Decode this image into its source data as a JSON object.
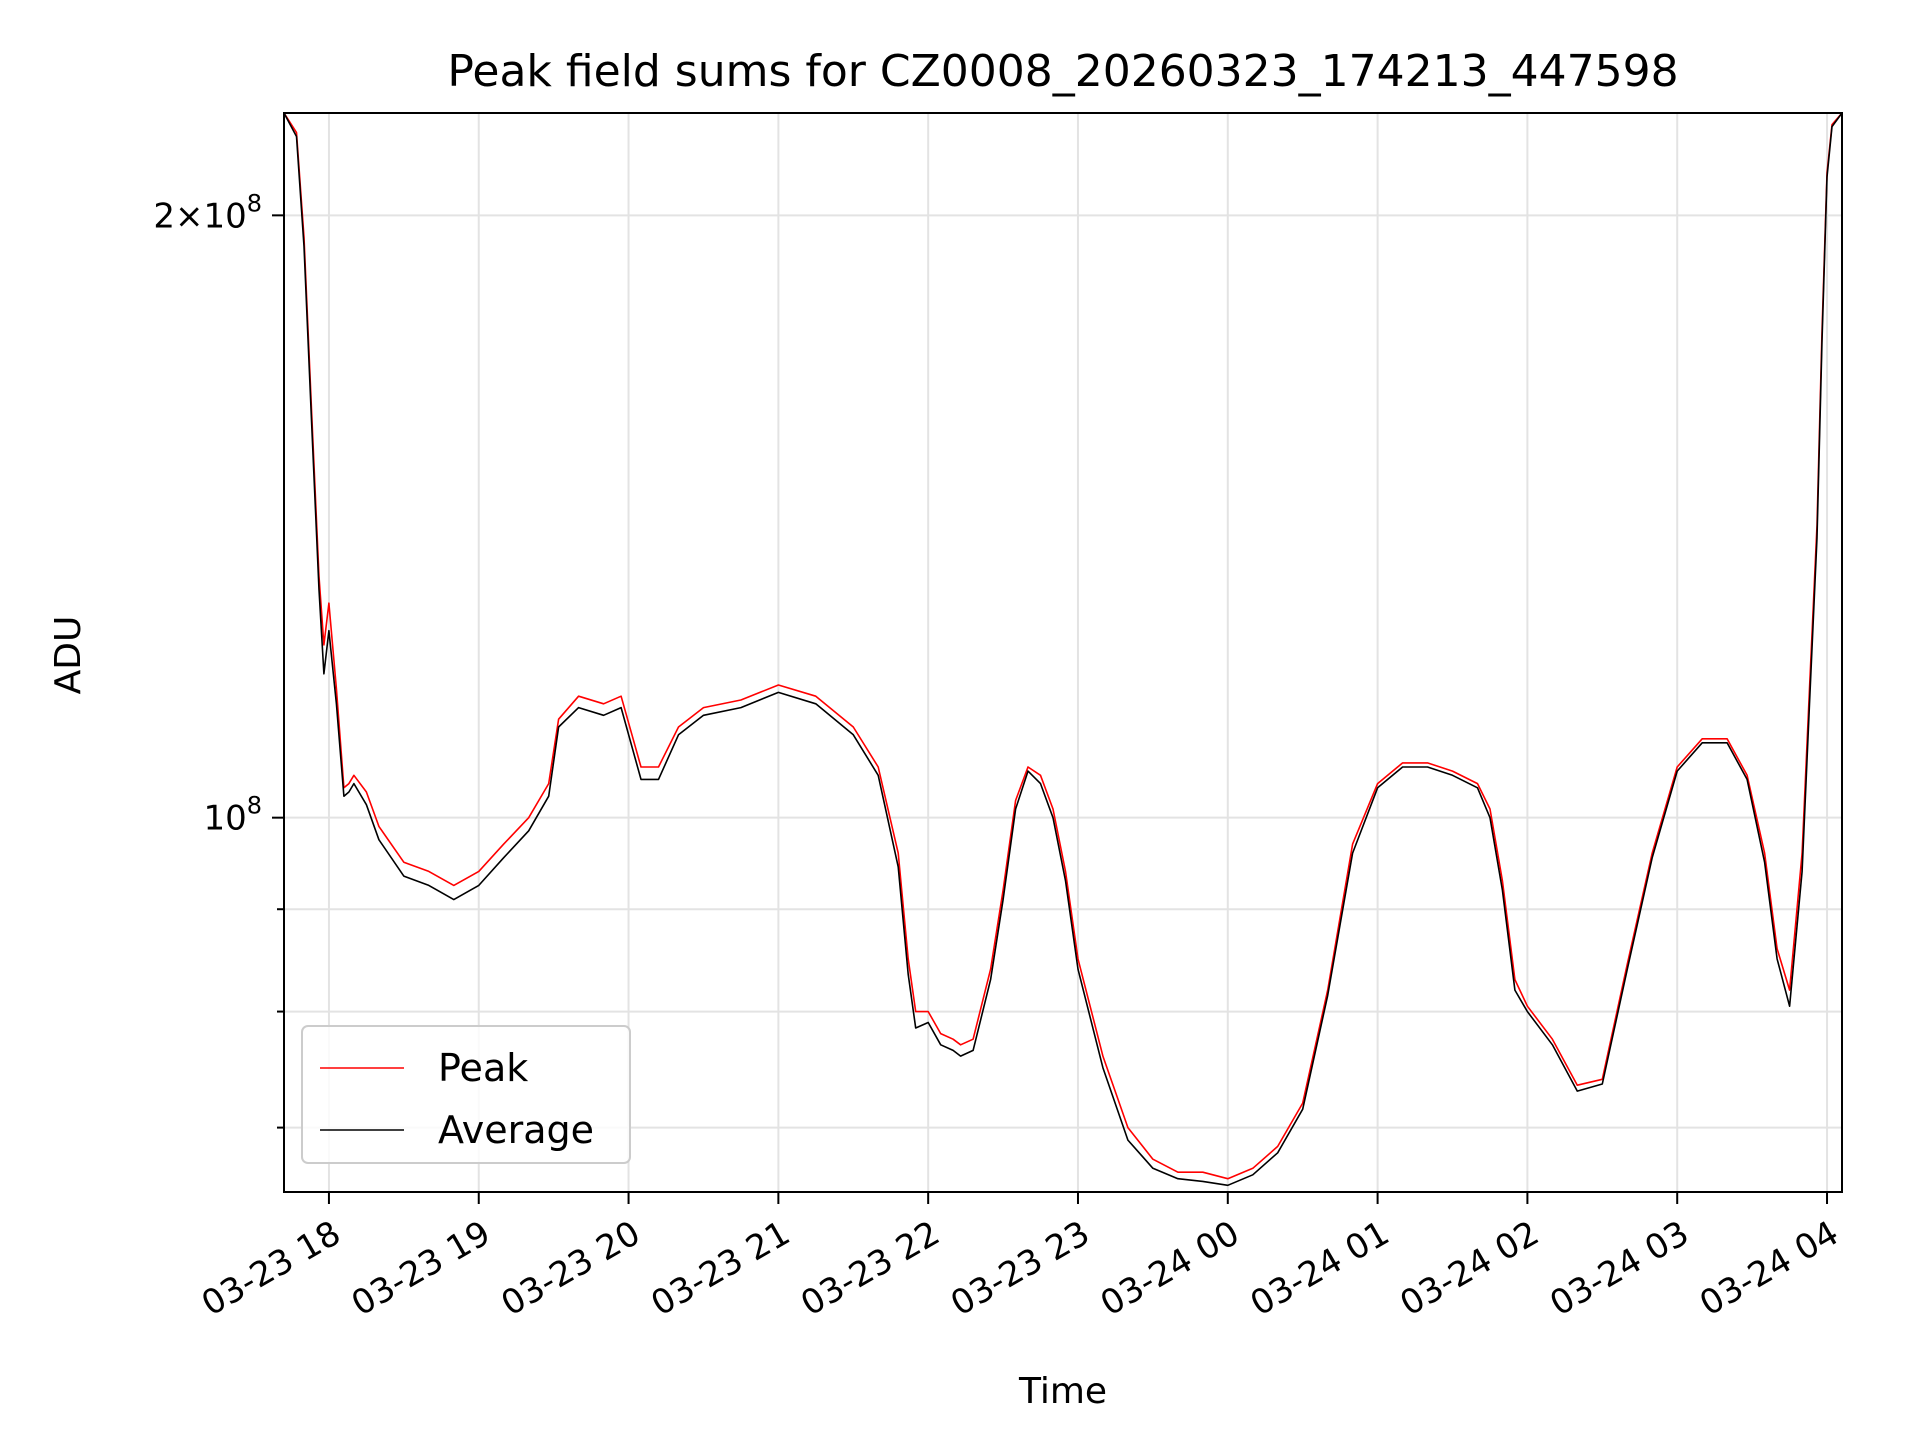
{
  "chart_data": {
    "type": "line",
    "title": "Peak field sums for CZ0008_20260323_174213_447598",
    "xlabel": "Time",
    "ylabel": "ADU",
    "yscale": "log",
    "grid": true,
    "legend_placement": "lower-left",
    "xlim": [
      "2026-03-23 17:42",
      "2026-03-24 04:06"
    ],
    "ylim": [
      65000000,
      225000000
    ],
    "x_ticks": [
      {
        "at": "2026-03-23 18:00",
        "label": "03-23 18"
      },
      {
        "at": "2026-03-23 19:00",
        "label": "03-23 19"
      },
      {
        "at": "2026-03-23 20:00",
        "label": "03-23 20"
      },
      {
        "at": "2026-03-23 21:00",
        "label": "03-23 21"
      },
      {
        "at": "2026-03-23 22:00",
        "label": "03-23 22"
      },
      {
        "at": "2026-03-23 23:00",
        "label": "03-23 23"
      },
      {
        "at": "2026-03-24 00:00",
        "label": "03-24 00"
      },
      {
        "at": "2026-03-24 01:00",
        "label": "03-24 01"
      },
      {
        "at": "2026-03-24 02:00",
        "label": "03-24 02"
      },
      {
        "at": "2026-03-24 03:00",
        "label": "03-24 03"
      },
      {
        "at": "2026-03-24 04:00",
        "label": "03-24 04"
      }
    ],
    "y_major_ticks": [
      {
        "value": 100000000,
        "base": "10",
        "exp": "8"
      },
      {
        "value": 200000000,
        "mant": "2",
        "base": "10",
        "exp": "8"
      }
    ],
    "y_minor_ticks": [
      70000000,
      80000000,
      90000000
    ],
    "series": [
      {
        "name": "Peak",
        "color": "#ff0000",
        "x": [
          "2026-03-23 17:42",
          "2026-03-23 17:47",
          "2026-03-23 17:50",
          "2026-03-23 17:53",
          "2026-03-23 17:56",
          "2026-03-23 17:58",
          "2026-03-23 18:00",
          "2026-03-23 18:03",
          "2026-03-23 18:06",
          "2026-03-23 18:08",
          "2026-03-23 18:10",
          "2026-03-23 18:15",
          "2026-03-23 18:20",
          "2026-03-23 18:30",
          "2026-03-23 18:40",
          "2026-03-23 18:50",
          "2026-03-23 19:00",
          "2026-03-23 19:10",
          "2026-03-23 19:20",
          "2026-03-23 19:28",
          "2026-03-23 19:32",
          "2026-03-23 19:40",
          "2026-03-23 19:50",
          "2026-03-23 19:57",
          "2026-03-23 20:05",
          "2026-03-23 20:12",
          "2026-03-23 20:20",
          "2026-03-23 20:30",
          "2026-03-23 20:45",
          "2026-03-23 21:00",
          "2026-03-23 21:15",
          "2026-03-23 21:30",
          "2026-03-23 21:40",
          "2026-03-23 21:48",
          "2026-03-23 21:52",
          "2026-03-23 21:55",
          "2026-03-23 22:00",
          "2026-03-23 22:05",
          "2026-03-23 22:10",
          "2026-03-23 22:13",
          "2026-03-23 22:18",
          "2026-03-23 22:25",
          "2026-03-23 22:30",
          "2026-03-23 22:35",
          "2026-03-23 22:40",
          "2026-03-23 22:45",
          "2026-03-23 22:50",
          "2026-03-23 22:55",
          "2026-03-23 23:00",
          "2026-03-23 23:10",
          "2026-03-23 23:20",
          "2026-03-23 23:30",
          "2026-03-23 23:40",
          "2026-03-23 23:50",
          "2026-03-24 00:00",
          "2026-03-24 00:10",
          "2026-03-24 00:20",
          "2026-03-24 00:30",
          "2026-03-24 00:40",
          "2026-03-24 00:50",
          "2026-03-24 01:00",
          "2026-03-24 01:10",
          "2026-03-24 01:20",
          "2026-03-24 01:30",
          "2026-03-24 01:40",
          "2026-03-24 01:45",
          "2026-03-24 01:50",
          "2026-03-24 01:55",
          "2026-03-24 02:00",
          "2026-03-24 02:10",
          "2026-03-24 02:20",
          "2026-03-24 02:30",
          "2026-03-24 02:40",
          "2026-03-24 02:50",
          "2026-03-24 03:00",
          "2026-03-24 03:10",
          "2026-03-24 03:20",
          "2026-03-24 03:28",
          "2026-03-24 03:35",
          "2026-03-24 03:40",
          "2026-03-24 03:45",
          "2026-03-24 03:50",
          "2026-03-24 03:53",
          "2026-03-24 03:56",
          "2026-03-24 03:58",
          "2026-03-24 04:00",
          "2026-03-24 04:02",
          "2026-03-24 04:06"
        ],
        "values": [
          225000000,
          220000000,
          195000000,
          160000000,
          132000000,
          122000000,
          128000000,
          116000000,
          103500000,
          104000000,
          105000000,
          103000000,
          99000000,
          95000000,
          94000000,
          92500000,
          94000000,
          97000000,
          100000000,
          104000000,
          112000000,
          115000000,
          114000000,
          115000000,
          106000000,
          106000000,
          111000000,
          113500000,
          114500000,
          116500000,
          115000000,
          111000000,
          106000000,
          96000000,
          85000000,
          80000000,
          80000000,
          78000000,
          77500000,
          77000000,
          77500000,
          84000000,
          92000000,
          102000000,
          106000000,
          105000000,
          101000000,
          94000000,
          85000000,
          76000000,
          70000000,
          67500000,
          66500000,
          66500000,
          66000000,
          66800000,
          68500000,
          72000000,
          82000000,
          97000000,
          104000000,
          106500000,
          106500000,
          105500000,
          104000000,
          101000000,
          93000000,
          83000000,
          80500000,
          77500000,
          73500000,
          74000000,
          84500000,
          96000000,
          106000000,
          109500000,
          109500000,
          105000000,
          96000000,
          86000000,
          82000000,
          96000000,
          116000000,
          140000000,
          175000000,
          210000000,
          222000000,
          225000000
        ]
      },
      {
        "name": "Average",
        "color": "#000000",
        "x": [
          "2026-03-23 17:42",
          "2026-03-23 17:47",
          "2026-03-23 17:50",
          "2026-03-23 17:53",
          "2026-03-23 17:56",
          "2026-03-23 17:58",
          "2026-03-23 18:00",
          "2026-03-23 18:03",
          "2026-03-23 18:06",
          "2026-03-23 18:08",
          "2026-03-23 18:10",
          "2026-03-23 18:15",
          "2026-03-23 18:20",
          "2026-03-23 18:30",
          "2026-03-23 18:40",
          "2026-03-23 18:50",
          "2026-03-23 19:00",
          "2026-03-23 19:10",
          "2026-03-23 19:20",
          "2026-03-23 19:28",
          "2026-03-23 19:32",
          "2026-03-23 19:40",
          "2026-03-23 19:50",
          "2026-03-23 19:57",
          "2026-03-23 20:05",
          "2026-03-23 20:12",
          "2026-03-23 20:20",
          "2026-03-23 20:30",
          "2026-03-23 20:45",
          "2026-03-23 21:00",
          "2026-03-23 21:15",
          "2026-03-23 21:30",
          "2026-03-23 21:40",
          "2026-03-23 21:48",
          "2026-03-23 21:52",
          "2026-03-23 21:55",
          "2026-03-23 22:00",
          "2026-03-23 22:05",
          "2026-03-23 22:10",
          "2026-03-23 22:13",
          "2026-03-23 22:18",
          "2026-03-23 22:25",
          "2026-03-23 22:30",
          "2026-03-23 22:35",
          "2026-03-23 22:40",
          "2026-03-23 22:45",
          "2026-03-23 22:50",
          "2026-03-23 22:55",
          "2026-03-23 23:00",
          "2026-03-23 23:10",
          "2026-03-23 23:20",
          "2026-03-23 23:30",
          "2026-03-23 23:40",
          "2026-03-23 23:50",
          "2026-03-24 00:00",
          "2026-03-24 00:10",
          "2026-03-24 00:20",
          "2026-03-24 00:30",
          "2026-03-24 00:40",
          "2026-03-24 00:50",
          "2026-03-24 01:00",
          "2026-03-24 01:10",
          "2026-03-24 01:20",
          "2026-03-24 01:30",
          "2026-03-24 01:40",
          "2026-03-24 01:45",
          "2026-03-24 01:50",
          "2026-03-24 01:55",
          "2026-03-24 02:00",
          "2026-03-24 02:10",
          "2026-03-24 02:20",
          "2026-03-24 02:30",
          "2026-03-24 02:40",
          "2026-03-24 02:50",
          "2026-03-24 03:00",
          "2026-03-24 03:10",
          "2026-03-24 03:20",
          "2026-03-24 03:28",
          "2026-03-24 03:35",
          "2026-03-24 03:40",
          "2026-03-24 03:45",
          "2026-03-24 03:50",
          "2026-03-24 03:53",
          "2026-03-24 03:56",
          "2026-03-24 03:58",
          "2026-03-24 04:00",
          "2026-03-24 04:02",
          "2026-03-24 04:06"
        ],
        "values": [
          225000000,
          219000000,
          193000000,
          158000000,
          130000000,
          118000000,
          124000000,
          114000000,
          102500000,
          103000000,
          104000000,
          101500000,
          97500000,
          93500000,
          92500000,
          91000000,
          92500000,
          95500000,
          98500000,
          102500000,
          111000000,
          113500000,
          112500000,
          113500000,
          104500000,
          104500000,
          110000000,
          112500000,
          113500000,
          115500000,
          114000000,
          110000000,
          105000000,
          94500000,
          83500000,
          78500000,
          79000000,
          77000000,
          76500000,
          76000000,
          76500000,
          83000000,
          91000000,
          101000000,
          105500000,
          104000000,
          100000000,
          93000000,
          84000000,
          75000000,
          69000000,
          66800000,
          66000000,
          65800000,
          65500000,
          66300000,
          68000000,
          71500000,
          81500000,
          96000000,
          103500000,
          106000000,
          106000000,
          105000000,
          103500000,
          100000000,
          92000000,
          82000000,
          80000000,
          77000000,
          73000000,
          73600000,
          84000000,
          95500000,
          105500000,
          109000000,
          109000000,
          104500000,
          95000000,
          85000000,
          80500000,
          94000000,
          114000000,
          138000000,
          173000000,
          209000000,
          221500000,
          225000000
        ]
      }
    ]
  }
}
